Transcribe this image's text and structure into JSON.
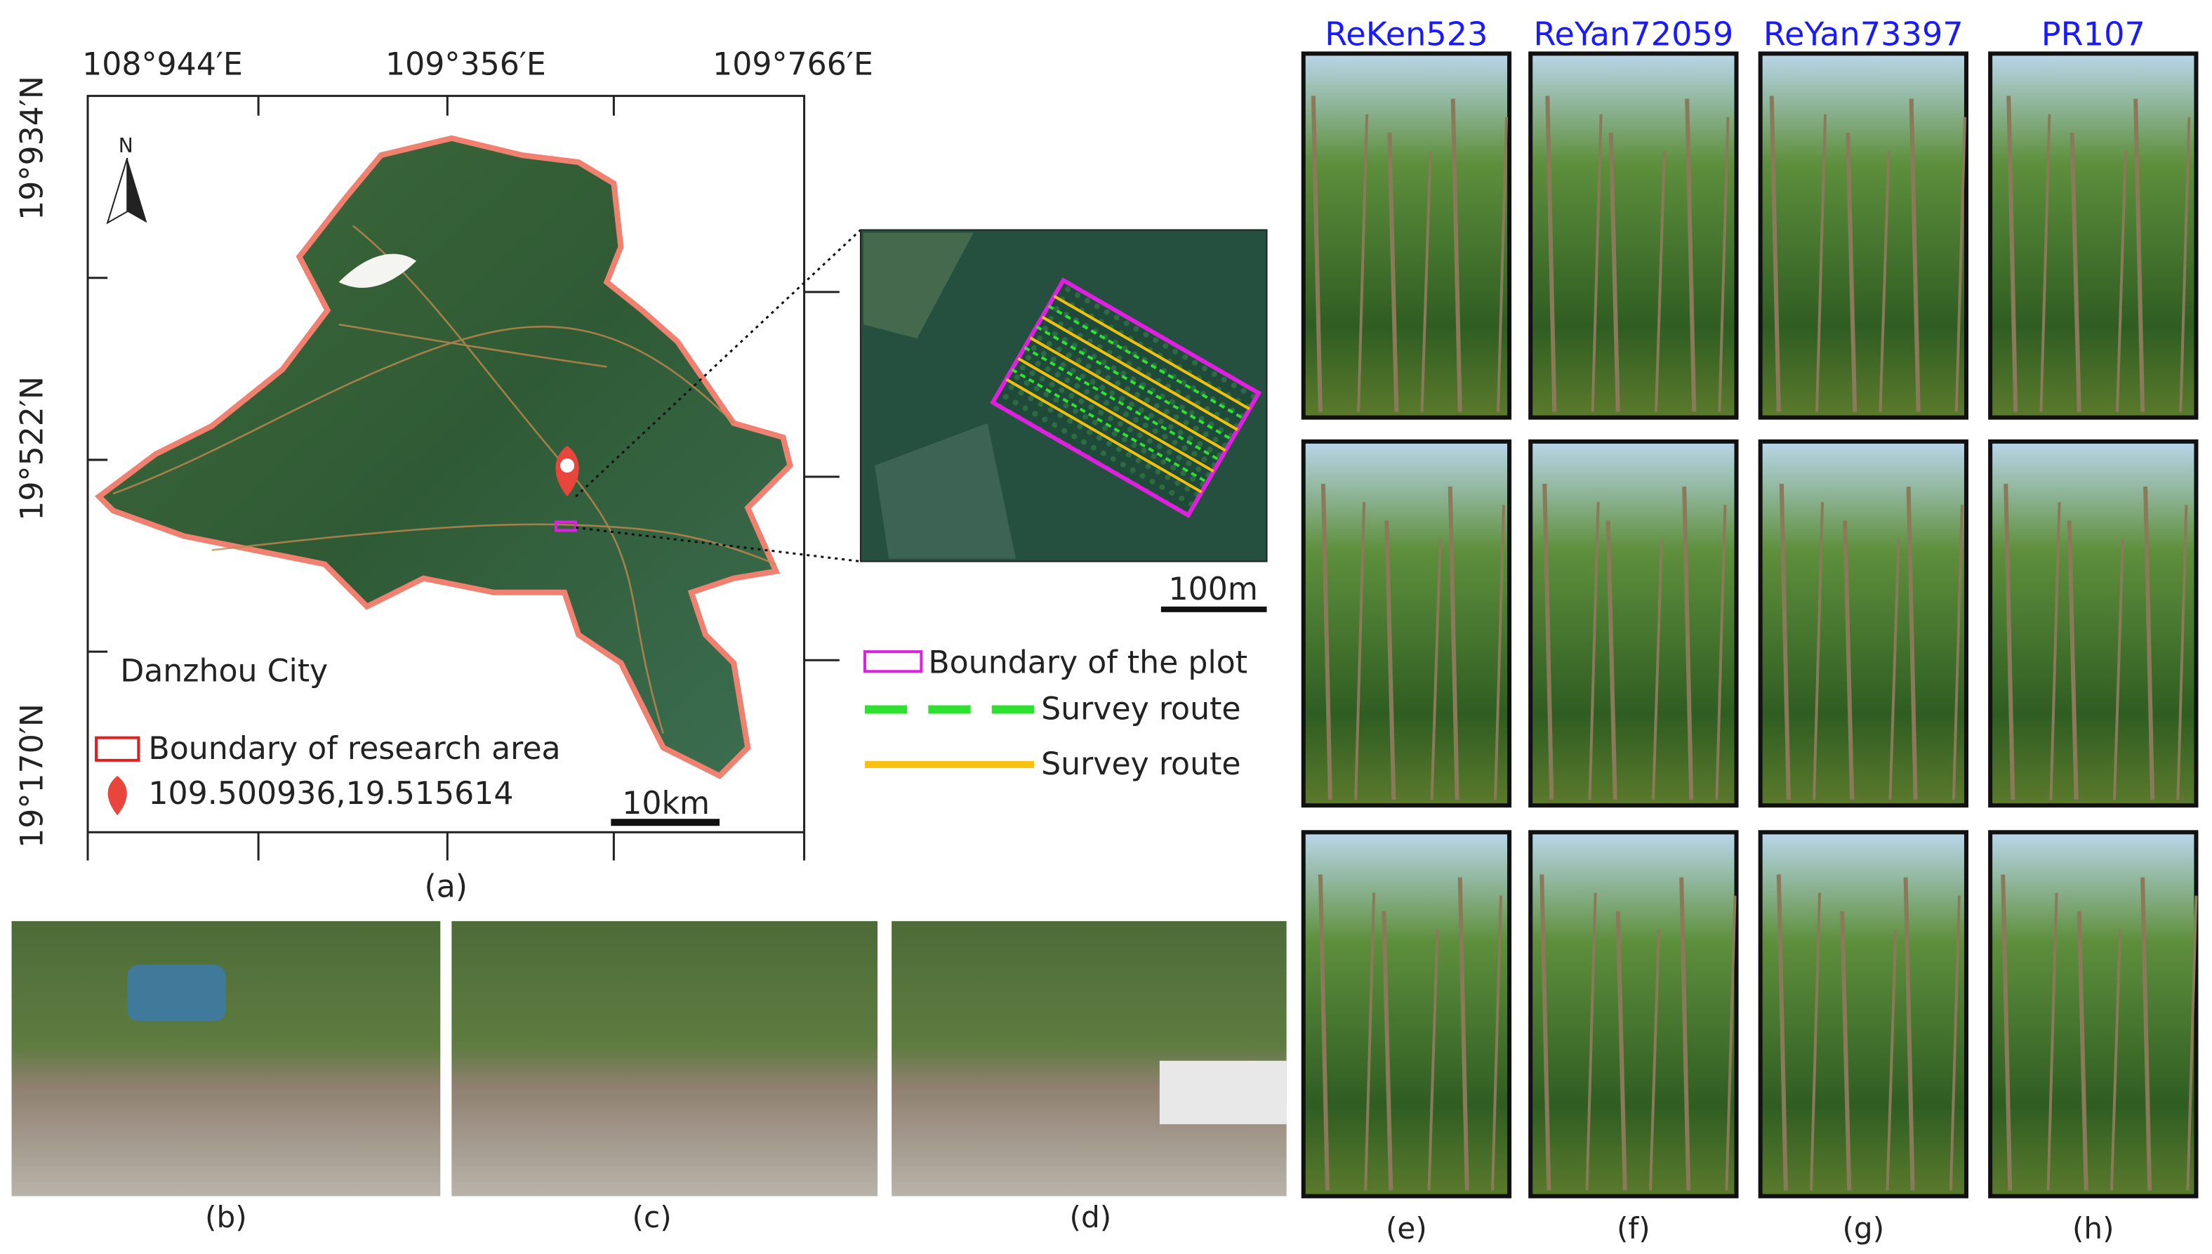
{
  "map": {
    "top_labels": [
      "108°944′E",
      "109°356′E",
      "109°766′E"
    ],
    "left_labels": [
      "19°934′N",
      "19°522′N",
      "19°170′N"
    ],
    "north": "N",
    "place": "Danzhou City",
    "legend": [
      "Boundary of research area",
      "109.500936,19.515614"
    ],
    "scale": "10km",
    "label": "(a)"
  },
  "inset": {
    "scale": "100m",
    "legend": [
      "Boundary of the plot",
      "Survey route",
      "Survey route"
    ]
  },
  "photos": {
    "labels": [
      "(b)",
      "(c)",
      "(d)"
    ]
  },
  "clones": {
    "names": [
      "ReKen523",
      "ReYan72059",
      "ReYan73397",
      "PR107"
    ],
    "labels": [
      "(e)",
      "(f)",
      "(g)",
      "(h)"
    ]
  }
}
